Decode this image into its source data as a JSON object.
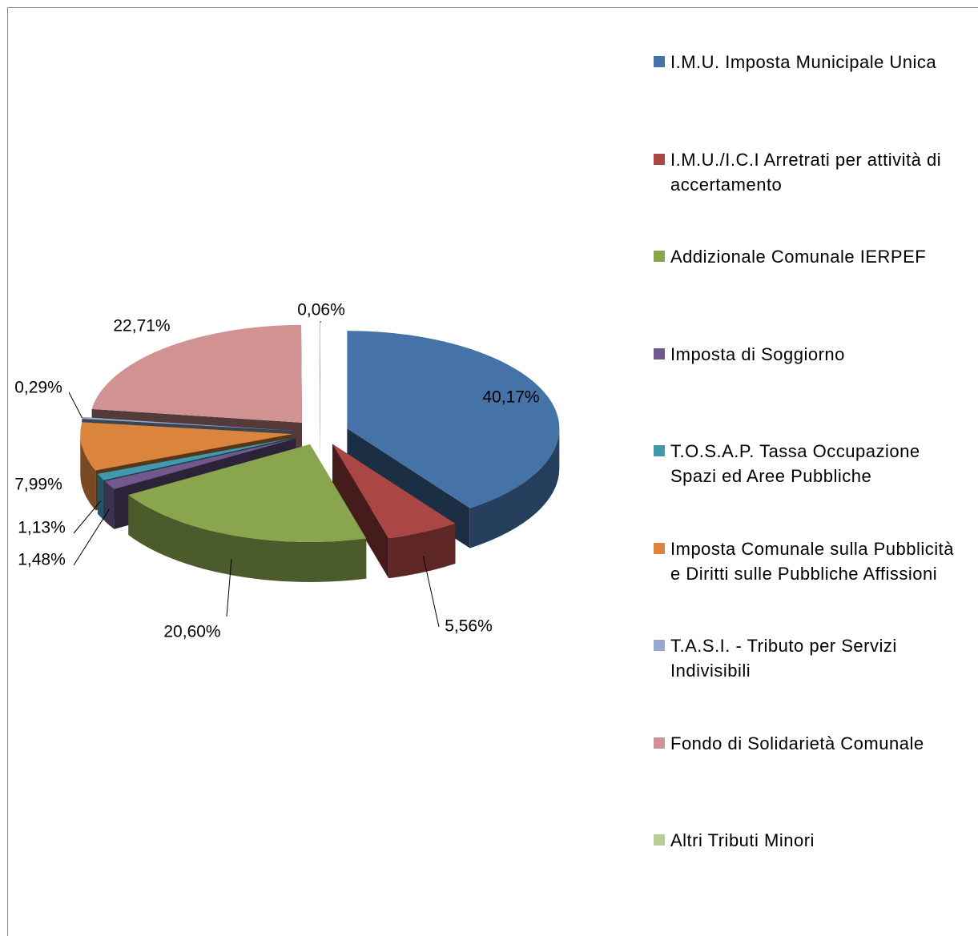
{
  "chart_data": {
    "type": "pie",
    "categories": [
      "I.M.U. Imposta Municipale Unica",
      "I.M.U./I.C.I Arretrati per attività di accertamento",
      "Addizionale Comunale IERPEF",
      "Imposta di Soggiorno",
      "T.O.S.A.P. Tassa Occupazione Spazi ed Aree Pubbliche",
      "Imposta Comunale sulla Pubblicità e Diritti sulle Pubbliche Affissioni",
      "T.A.S.I. - Tributo per Servizi Indivisibili",
      "Fondo di Solidarietà Comunale",
      "Altri Tributi Minori"
    ],
    "values": [
      40.17,
      5.56,
      20.6,
      1.48,
      1.13,
      7.99,
      0.29,
      22.71,
      0.06
    ],
    "value_labels": [
      "40,17%",
      "5,56%",
      "20,60%",
      "1,48%",
      "1,13%",
      "7,99%",
      "0,29%",
      "22,71%",
      "0,06%"
    ],
    "colors": [
      "#4572a7",
      "#aa4643",
      "#89a54e",
      "#71588f",
      "#4198af",
      "#db843d",
      "#93a9cf",
      "#d19392",
      "#b9cd96"
    ],
    "legend": "right"
  }
}
